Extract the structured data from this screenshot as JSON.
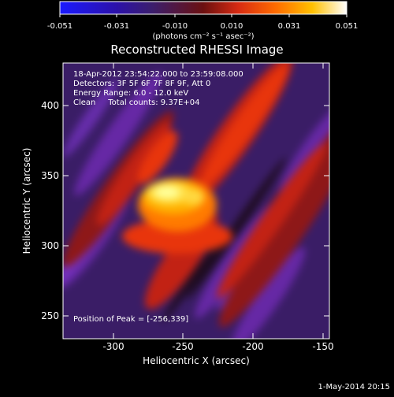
{
  "colorbar": {
    "tick_labels": [
      "-0.051",
      "-0.031",
      "-0.010",
      "0.010",
      "0.031",
      "0.051"
    ],
    "units_label": "(photons cm⁻² s⁻¹ asec⁻²)"
  },
  "title": "Reconstructed RHESSI Image",
  "info": {
    "time_range": "18-Apr-2012 23:54:22.000 to 23:59:08.000",
    "detectors": "Detectors: 3F 5F 6F 7F 8F 9F, Att 0",
    "energy_range": "Energy Range: 6.0 - 12.0 keV",
    "algorithm_counts": "Clean     Total counts: 9.37E+04"
  },
  "peak_text": "Position of Peak = [-256,339]",
  "axes": {
    "x_ticks": [
      "-300",
      "-250",
      "-200",
      "-150"
    ],
    "y_ticks": [
      "250",
      "300",
      "350",
      "400"
    ],
    "xlabel": "Heliocentric X (arcsec)",
    "ylabel": "Heliocentric Y (arcsec)",
    "xlim": [
      -335,
      -148
    ],
    "ylim": [
      236,
      433
    ]
  },
  "footer_timestamp": "1-May-2014 20:15",
  "colors": {
    "background": "#000000",
    "text": "#ffffff",
    "colormap": [
      "#1a1aff",
      "#2c11a8",
      "#3b1e6e",
      "#6a22a6",
      "#901b2a",
      "#d62a12",
      "#ff6a00",
      "#ffb000",
      "#ffff60",
      "#ffffff"
    ]
  }
}
